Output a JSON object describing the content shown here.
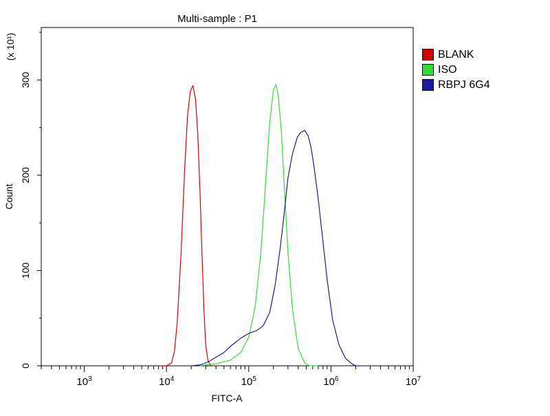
{
  "chart_data": {
    "type": "line",
    "title": "Multi-sample : P1",
    "xlabel": "FITC-A",
    "ylabel": "Count",
    "y_multiplier": "(x 10¹)",
    "x_scale": "log",
    "xlim": [
      300,
      10000000
    ],
    "ylim": [
      0,
      355
    ],
    "x_tick_labels": [
      {
        "base": "10",
        "exp": "3",
        "value": 1000
      },
      {
        "base": "10",
        "exp": "4",
        "value": 10000
      },
      {
        "base": "10",
        "exp": "5",
        "value": 100000
      },
      {
        "base": "10",
        "exp": "6",
        "value": 1000000
      },
      {
        "base": "10",
        "exp": "7",
        "value": 10000000
      }
    ],
    "y_ticks": [
      0,
      100,
      200,
      300
    ],
    "y_tick_labels": [
      "0",
      "100",
      "200",
      "300"
    ],
    "legend_position": "right",
    "grid": false,
    "series": [
      {
        "name": "BLANK",
        "color": "#d40000",
        "points": [
          [
            8000,
            0
          ],
          [
            10000,
            0
          ],
          [
            11500,
            3
          ],
          [
            12500,
            15
          ],
          [
            13500,
            45
          ],
          [
            15000,
            115
          ],
          [
            16500,
            200
          ],
          [
            18000,
            262
          ],
          [
            19500,
            288
          ],
          [
            21000,
            294
          ],
          [
            22500,
            280
          ],
          [
            24000,
            245
          ],
          [
            25500,
            185
          ],
          [
            27000,
            118
          ],
          [
            28500,
            60
          ],
          [
            30000,
            22
          ],
          [
            32000,
            5
          ],
          [
            35000,
            0
          ],
          [
            40000,
            0
          ]
        ]
      },
      {
        "name": "ISO",
        "color": "#33dd33",
        "points": [
          [
            25000,
            0
          ],
          [
            40000,
            2
          ],
          [
            60000,
            6
          ],
          [
            80000,
            14
          ],
          [
            100000,
            30
          ],
          [
            120000,
            62
          ],
          [
            140000,
            118
          ],
          [
            160000,
            190
          ],
          [
            180000,
            255
          ],
          [
            200000,
            290
          ],
          [
            215000,
            295
          ],
          [
            230000,
            282
          ],
          [
            250000,
            245
          ],
          [
            270000,
            190
          ],
          [
            300000,
            120
          ],
          [
            340000,
            60
          ],
          [
            400000,
            18
          ],
          [
            480000,
            3
          ],
          [
            550000,
            0
          ],
          [
            700000,
            0
          ]
        ]
      },
      {
        "name": "RBPJ 6G4",
        "color": "#1a1aa0",
        "points": [
          [
            20000,
            0
          ],
          [
            26000,
            1
          ],
          [
            32000,
            4
          ],
          [
            40000,
            9
          ],
          [
            50000,
            14
          ],
          [
            63000,
            22
          ],
          [
            80000,
            29
          ],
          [
            100000,
            34
          ],
          [
            125000,
            37
          ],
          [
            150000,
            42
          ],
          [
            180000,
            56
          ],
          [
            210000,
            85
          ],
          [
            240000,
            122
          ],
          [
            270000,
            160
          ],
          [
            300000,
            197
          ],
          [
            340000,
            222
          ],
          [
            390000,
            240
          ],
          [
            430000,
            245
          ],
          [
            480000,
            247
          ],
          [
            530000,
            241
          ],
          [
            570000,
            230
          ],
          [
            620000,
            210
          ],
          [
            700000,
            175
          ],
          [
            800000,
            130
          ],
          [
            900000,
            90
          ],
          [
            1050000,
            48
          ],
          [
            1250000,
            22
          ],
          [
            1500000,
            8
          ],
          [
            1800000,
            2
          ],
          [
            2000000,
            0
          ],
          [
            2300000,
            0
          ]
        ]
      }
    ]
  }
}
